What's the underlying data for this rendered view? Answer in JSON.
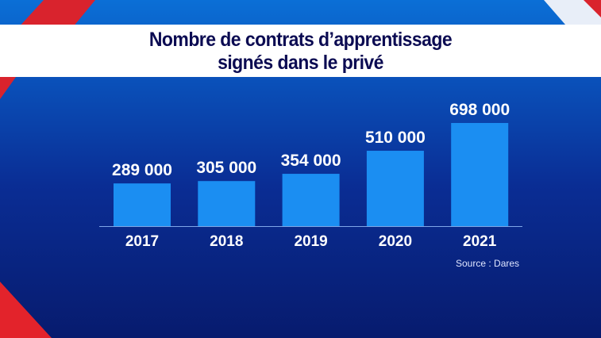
{
  "colors": {
    "bar": "#1b8ef2",
    "title": "#0b0b52",
    "accent_red": "#e0202a"
  },
  "chart_data": {
    "type": "bar",
    "title": "Nombre de contrats d’apprentissage signés dans le privé",
    "title_lines": [
      "Nombre de contrats d’apprentissage",
      "signés dans le privé"
    ],
    "categories": [
      "2017",
      "2018",
      "2019",
      "2020",
      "2021"
    ],
    "values": [
      289000,
      305000,
      354000,
      510000,
      698000
    ],
    "value_labels": [
      "289 000",
      "305 000",
      "354 000",
      "510 000",
      "698 000"
    ],
    "xlabel": "",
    "ylabel": "",
    "ylim": [
      0,
      698000
    ],
    "grid": false,
    "source": "Source : Dares"
  }
}
